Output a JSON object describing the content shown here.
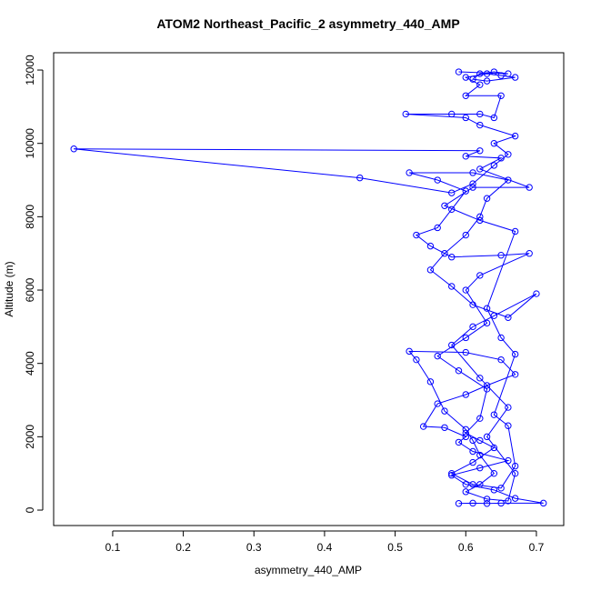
{
  "chart_data": {
    "type": "line",
    "markers": true,
    "color": "#0000ff",
    "title": "ATOM2 Northeast_Pacific_2 asymmetry_440_AMP",
    "x_label": "asymmetry_440_AMP",
    "y_label": "Altitude (m)",
    "xlim": [
      0.0164,
      0.7387
    ],
    "ylim": [
      -421,
      12472
    ],
    "xticks": [
      0.1,
      0.2,
      0.3,
      0.4,
      0.5,
      0.6,
      0.7
    ],
    "yticks": [
      0,
      2000,
      4000,
      6000,
      8000,
      10000,
      12000
    ],
    "series": [
      {
        "x": [
          0.59,
          0.61,
          0.63,
          0.65,
          0.71,
          0.67,
          0.64,
          0.6,
          0.58,
          0.62,
          0.66,
          0.61,
          0.59,
          0.6,
          0.57,
          0.54,
          0.56,
          0.6,
          0.63,
          0.67,
          0.65,
          0.6,
          0.52,
          0.53,
          0.55,
          0.57,
          0.6,
          0.61,
          0.62,
          0.64,
          0.62,
          0.6,
          0.63,
          0.66,
          0.67,
          0.63,
          0.66,
          0.62,
          0.58,
          0.61,
          0.64,
          0.7,
          0.66,
          0.61,
          0.58,
          0.55,
          0.57,
          0.6,
          0.62,
          0.63,
          0.66,
          0.61,
          0.52,
          0.56,
          0.6,
          0.58,
          0.56,
          0.53,
          0.55,
          0.58,
          0.65,
          0.69,
          0.62,
          0.6,
          0.63,
          0.6,
          0.56,
          0.59,
          0.63,
          0.62,
          0.6,
          0.62,
          0.64,
          0.61,
          0.58,
          0.61,
          0.65,
          0.67,
          0.66,
          0.64,
          0.67,
          0.65,
          0.63,
          0.67,
          0.62,
          0.57,
          0.61,
          0.69,
          0.62,
          0.65,
          0.6,
          0.62,
          0.045,
          0.45,
          0.58,
          0.61,
          0.64,
          0.66,
          0.64,
          0.67,
          0.62,
          0.6,
          0.515,
          0.58,
          0.62,
          0.64,
          0.65,
          0.6,
          0.62,
          0.6,
          0.63,
          0.65,
          0.67,
          0.63,
          0.61,
          0.62,
          0.64,
          0.66,
          0.59
        ],
        "y": [
          180,
          190,
          180,
          190,
          190,
          320,
          550,
          700,
          950,
          1150,
          1350,
          1600,
          1850,
          2000,
          2250,
          2280,
          2900,
          3150,
          3400,
          3700,
          4100,
          4300,
          4330,
          4100,
          3500,
          2700,
          2200,
          1900,
          1500,
          1000,
          700,
          500,
          300,
          250,
          1000,
          2000,
          2800,
          3600,
          4500,
          5000,
          5300,
          5900,
          5250,
          5600,
          6100,
          6550,
          7000,
          7500,
          8000,
          8500,
          9000,
          9200,
          9200,
          9000,
          8700,
          8200,
          7700,
          7500,
          7200,
          6900,
          6950,
          7000,
          6400,
          6000,
          5100,
          4700,
          4200,
          3800,
          3300,
          2500,
          2100,
          1900,
          1700,
          1300,
          1000,
          700,
          600,
          1200,
          2300,
          2600,
          4250,
          4700,
          5500,
          7600,
          7900,
          8300,
          8800,
          8800,
          9300,
          9600,
          9650,
          9800,
          9850,
          9060,
          8650,
          8900,
          9400,
          9700,
          10000,
          10200,
          10500,
          10700,
          10800,
          10800,
          10800,
          10700,
          11300,
          11300,
          11600,
          11800,
          11900,
          11850,
          11800,
          11700,
          11750,
          11900,
          11950,
          11900,
          11950
        ]
      }
    ]
  }
}
